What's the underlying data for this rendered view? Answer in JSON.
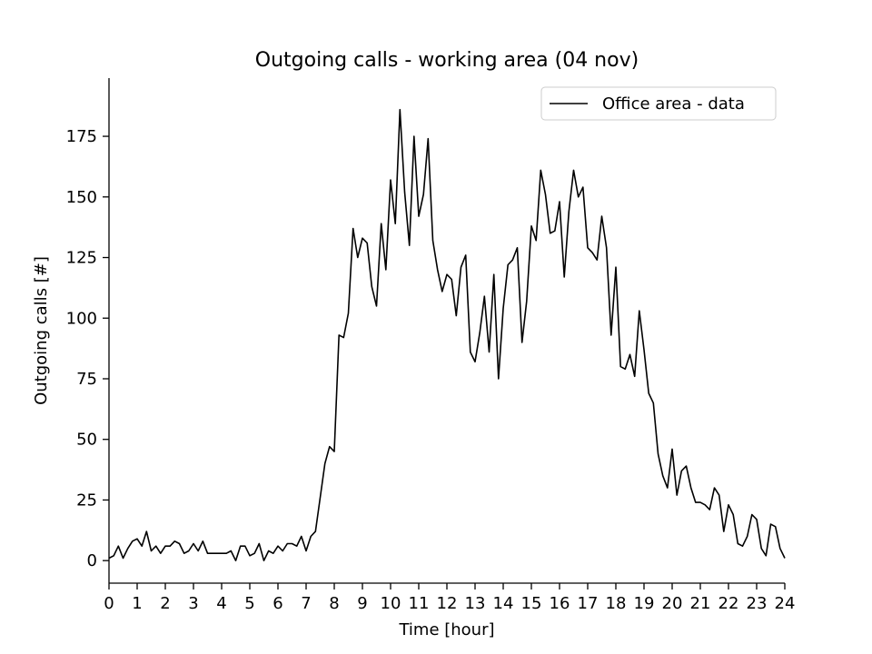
{
  "chart_data": {
    "type": "line",
    "title": "Outgoing calls - working area (04 nov)",
    "xlabel": "Time [hour]",
    "ylabel": "Outgoing calls [#]",
    "xlim": [
      0,
      24
    ],
    "ylim": [
      -9.3,
      199
    ],
    "xticks": [
      0,
      1,
      2,
      3,
      4,
      5,
      6,
      7,
      8,
      9,
      10,
      11,
      12,
      13,
      14,
      15,
      16,
      17,
      18,
      19,
      20,
      21,
      22,
      23,
      24
    ],
    "yticks": [
      0,
      25,
      50,
      75,
      100,
      125,
      150,
      175
    ],
    "grid": false,
    "legend_position": "top-right",
    "line_color": "#000000",
    "series": [
      {
        "name": "Office area - data",
        "x": [
          0,
          0.167,
          0.333,
          0.5,
          0.667,
          0.833,
          1.0,
          1.167,
          1.333,
          1.5,
          1.667,
          1.833,
          2.0,
          2.167,
          2.333,
          2.5,
          2.667,
          2.833,
          3.0,
          3.167,
          3.333,
          3.5,
          3.667,
          3.833,
          4.0,
          4.167,
          4.333,
          4.5,
          4.667,
          4.833,
          5.0,
          5.167,
          5.333,
          5.5,
          5.667,
          5.833,
          6.0,
          6.167,
          6.333,
          6.5,
          6.667,
          6.833,
          7.0,
          7.167,
          7.333,
          7.5,
          7.667,
          7.833,
          8.0,
          8.167,
          8.333,
          8.5,
          8.667,
          8.833,
          9.0,
          9.167,
          9.333,
          9.5,
          9.667,
          9.833,
          10.0,
          10.167,
          10.333,
          10.5,
          10.667,
          10.833,
          11.0,
          11.167,
          11.333,
          11.5,
          11.667,
          11.833,
          12.0,
          12.167,
          12.333,
          12.5,
          12.667,
          12.833,
          13.0,
          13.167,
          13.333,
          13.5,
          13.667,
          13.833,
          14.0,
          14.167,
          14.333,
          14.5,
          14.667,
          14.833,
          15.0,
          15.167,
          15.333,
          15.5,
          15.667,
          15.833,
          16.0,
          16.167,
          16.333,
          16.5,
          16.667,
          16.833,
          17.0,
          17.167,
          17.333,
          17.5,
          17.667,
          17.833,
          18.0,
          18.167,
          18.333,
          18.5,
          18.667,
          18.833,
          19.0,
          19.167,
          19.333,
          19.5,
          19.667,
          19.833,
          20.0,
          20.167,
          20.333,
          20.5,
          20.667,
          20.833,
          21.0,
          21.167,
          21.333,
          21.5,
          21.667,
          21.833,
          22.0,
          22.167,
          22.333,
          22.5,
          22.667,
          22.833,
          23.0,
          23.167,
          23.333,
          23.5,
          23.667,
          23.833,
          24.0
        ],
        "y": [
          1,
          2,
          6,
          1,
          5,
          8,
          9,
          6,
          12,
          4,
          6,
          3,
          6,
          6,
          8,
          7,
          3,
          4,
          7,
          4,
          8,
          3,
          3,
          3,
          3,
          3,
          4,
          0,
          6,
          6,
          2,
          3,
          7,
          0,
          4,
          3,
          6,
          4,
          7,
          7,
          6,
          10,
          4,
          10,
          12,
          26,
          40,
          47,
          45,
          93,
          92,
          102,
          137,
          125,
          133,
          131,
          113,
          105,
          139,
          120,
          157,
          139,
          186,
          152,
          130,
          175,
          142,
          151,
          174,
          132,
          120,
          111,
          118,
          116,
          101,
          121,
          126,
          86,
          82,
          94,
          109,
          86,
          118,
          75,
          104,
          122,
          124,
          129,
          90,
          107,
          138,
          132,
          161,
          151,
          135,
          136,
          148,
          117,
          144,
          161,
          150,
          154,
          129,
          127,
          124,
          142,
          129,
          93,
          121,
          80,
          79,
          85,
          76,
          103,
          87,
          69,
          65,
          44,
          35,
          30,
          46,
          27,
          37,
          39,
          30,
          24,
          24,
          23,
          21,
          30,
          27,
          12,
          23,
          19,
          7,
          6,
          10,
          19,
          17,
          5,
          2,
          15,
          14,
          5,
          1
        ]
      }
    ]
  }
}
